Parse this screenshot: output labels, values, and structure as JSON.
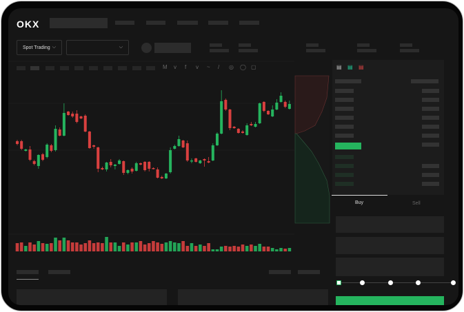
{
  "header": {
    "logo": "OKX"
  },
  "market": {
    "mode_selector": "Spot Trading",
    "pair_selector": ""
  },
  "order_form": {
    "tabs": [
      {
        "label": "Buy",
        "active": true
      },
      {
        "label": "Sell",
        "active": false
      }
    ],
    "slider_percent": 0,
    "slider_stops": [
      0,
      25,
      50,
      75,
      100
    ]
  },
  "colors": {
    "up": "#25b45e",
    "down": "#d9403f",
    "background": "#161616",
    "submit": "#25b45e"
  },
  "icons": {
    "chevron": "chevron-down-icon",
    "book_views": [
      "book-both-icon",
      "book-bids-icon",
      "book-asks-icon"
    ]
  },
  "chart_data": {
    "type": "candlestick",
    "candles": [
      [
        97,
        99,
        91,
        93
      ],
      [
        97,
        99,
        84,
        86
      ],
      [
        83,
        86,
        82,
        85
      ],
      [
        85,
        90,
        68,
        70
      ],
      [
        68,
        70,
        62,
        64
      ],
      [
        61,
        78,
        57,
        77
      ],
      [
        78,
        80,
        68,
        70
      ],
      [
        74,
        94,
        72,
        92
      ],
      [
        91,
        93,
        81,
        83
      ],
      [
        84,
        120,
        82,
        115
      ],
      [
        114,
        117,
        104,
        105
      ],
      [
        105,
        152,
        104,
        138
      ],
      [
        140,
        141,
        134,
        135
      ],
      [
        137,
        140,
        131,
        133
      ],
      [
        137,
        142,
        123,
        125
      ],
      [
        133,
        134,
        129,
        130
      ],
      [
        134,
        136,
        110,
        111
      ],
      [
        111,
        112,
        86,
        87
      ],
      [
        91,
        92,
        86,
        89
      ],
      [
        88,
        89,
        52,
        57
      ],
      [
        58,
        60,
        55,
        56
      ],
      [
        56,
        67,
        53,
        66
      ],
      [
        67,
        71,
        59,
        62
      ],
      [
        61,
        64,
        56,
        63
      ],
      [
        64,
        71,
        63,
        69
      ],
      [
        68,
        69,
        48,
        51
      ],
      [
        51,
        56,
        49,
        55
      ],
      [
        57,
        59,
        50,
        53
      ],
      [
        54,
        67,
        53,
        65
      ],
      [
        65,
        66,
        62,
        63
      ],
      [
        67,
        68,
        53,
        55
      ],
      [
        67,
        68,
        53,
        57
      ],
      [
        58,
        59,
        56,
        57
      ],
      [
        56,
        59,
        43,
        44
      ],
      [
        45,
        47,
        42,
        43
      ],
      [
        43,
        51,
        42,
        50
      ],
      [
        52,
        88,
        50,
        84
      ],
      [
        86,
        92,
        85,
        90
      ],
      [
        90,
        105,
        89,
        100
      ],
      [
        98,
        99,
        87,
        88
      ],
      [
        94,
        98,
        67,
        69
      ],
      [
        68,
        72,
        65,
        69
      ],
      [
        72,
        73,
        66,
        67
      ],
      [
        65,
        70,
        64,
        69
      ],
      [
        71,
        72,
        60,
        69
      ],
      [
        68,
        74,
        65,
        66
      ],
      [
        69,
        94,
        68,
        91
      ],
      [
        91,
        110,
        90,
        108
      ],
      [
        108,
        171,
        107,
        155
      ],
      [
        157,
        159,
        141,
        143
      ],
      [
        143,
        144,
        113,
        116
      ],
      [
        118,
        119,
        115,
        116
      ],
      [
        115,
        116,
        108,
        109
      ],
      [
        111,
        113,
        108,
        109
      ],
      [
        106,
        123,
        105,
        120
      ],
      [
        122,
        125,
        119,
        120
      ],
      [
        118,
        125,
        117,
        122
      ],
      [
        123,
        153,
        122,
        152
      ],
      [
        154,
        155,
        139,
        141
      ],
      [
        141,
        142,
        135,
        136
      ],
      [
        133,
        149,
        132,
        143
      ],
      [
        143,
        158,
        142,
        153
      ],
      [
        154,
        168,
        153,
        163
      ],
      [
        154,
        156,
        145,
        147
      ],
      [
        144,
        156,
        143,
        151
      ]
    ],
    "volume": [
      12,
      13,
      8,
      13,
      10,
      15,
      12,
      11,
      12,
      20,
      16,
      20,
      16,
      13,
      13,
      10,
      12,
      16,
      12,
      13,
      12,
      21,
      13,
      13,
      8,
      13,
      10,
      13,
      13,
      15,
      10,
      12,
      15,
      13,
      11,
      13,
      15,
      13,
      12,
      15,
      8,
      12,
      8,
      10,
      8,
      12,
      3,
      3,
      7,
      8,
      7,
      8,
      7,
      10,
      8,
      10,
      8,
      11,
      7,
      7,
      5,
      3,
      5,
      4,
      5
    ]
  }
}
